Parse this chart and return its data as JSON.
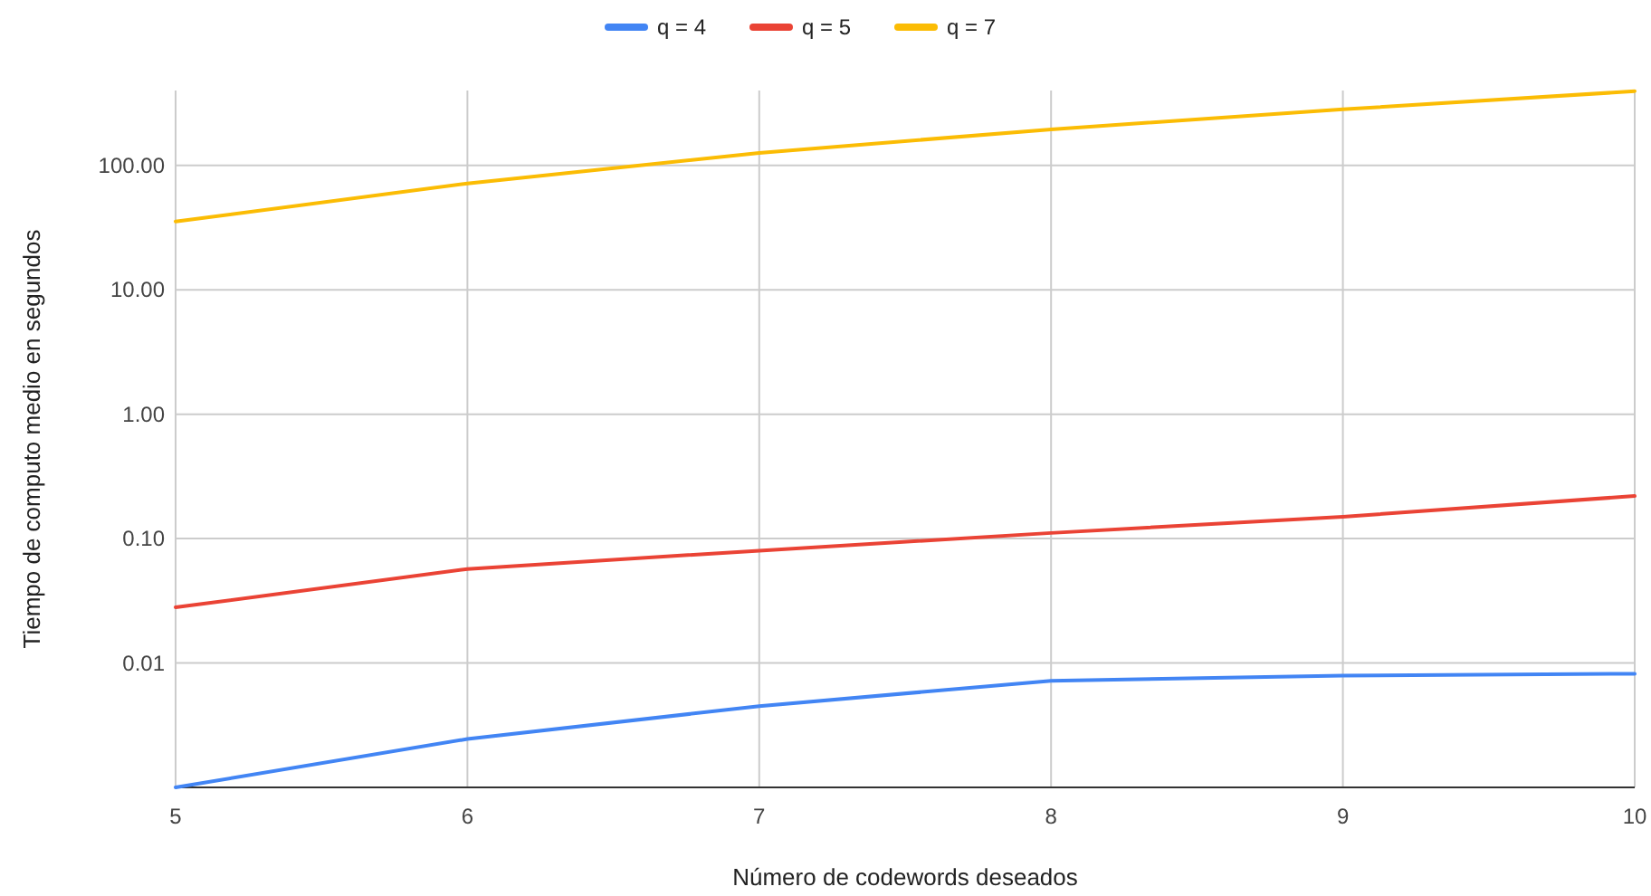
{
  "chart_data": {
    "type": "line",
    "xlabel": "Número de codewords deseados",
    "ylabel": "Tiempo de computo medio en segundos",
    "x": [
      5,
      6,
      7,
      8,
      9,
      10
    ],
    "xlim": [
      5,
      10
    ],
    "xticks": [
      5,
      6,
      7,
      8,
      9,
      10
    ],
    "ylim": [
      0.001,
      400
    ],
    "yticks": [
      {
        "value": 0.01,
        "label": "0.01"
      },
      {
        "value": 0.1,
        "label": "0.10"
      },
      {
        "value": 1,
        "label": "1.00"
      },
      {
        "value": 10,
        "label": "10.00"
      },
      {
        "value": 100,
        "label": "100.00"
      }
    ],
    "log": "y",
    "grid": true,
    "legend": "top",
    "marker": "none",
    "line_style": "solid",
    "series": [
      {
        "name": "q = 4",
        "color": "#4285f4",
        "values": [
          0.001,
          0.00245,
          0.0045,
          0.0072,
          0.0079,
          0.0082
        ]
      },
      {
        "name": "q = 5",
        "color": "#ea4335",
        "values": [
          0.028,
          0.057,
          0.08,
          0.111,
          0.15,
          0.22
        ]
      },
      {
        "name": "q = 7",
        "color": "#fbbc04",
        "values": [
          35.4,
          71.6,
          126,
          195,
          282,
          395
        ]
      }
    ]
  }
}
